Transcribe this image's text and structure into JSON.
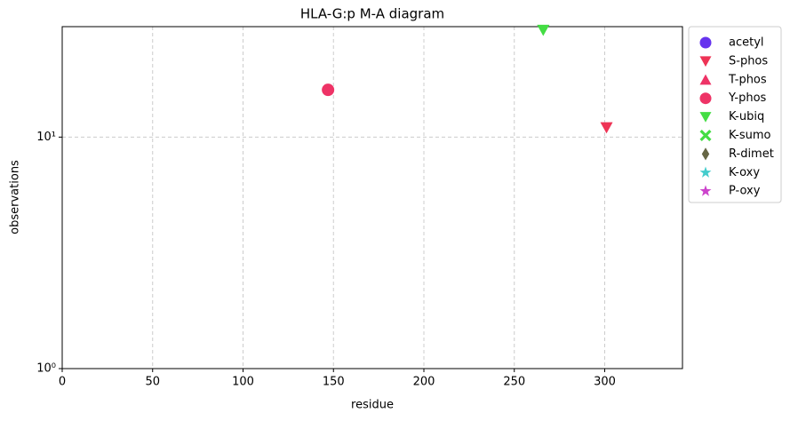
{
  "chart_data": {
    "type": "scatter",
    "title": "HLA-G:p M-A diagram",
    "x_label": "residue",
    "y_label": "observations",
    "xlim": [
      0,
      343
    ],
    "xticks": [
      0,
      50,
      100,
      150,
      200,
      250,
      300
    ],
    "ylim": [
      1,
      30
    ],
    "yscale": "log",
    "yticks": [
      {
        "value": 1,
        "label": "10⁰"
      },
      {
        "value": 10,
        "label": "10¹"
      }
    ],
    "grid": true,
    "legend": "outside right",
    "series": [
      {
        "name": "acetyl",
        "color": "#6633ee",
        "marker": "circle",
        "x": [],
        "values": []
      },
      {
        "name": "S-phos",
        "color": "#ee3355",
        "marker": "triangle-down",
        "x": [
          301
        ],
        "values": [
          11
        ]
      },
      {
        "name": "T-phos",
        "color": "#ee3366",
        "marker": "triangle-up",
        "x": [],
        "values": []
      },
      {
        "name": "Y-phos",
        "color": "#ee3366",
        "marker": "circle",
        "x": [
          147
        ],
        "values": [
          16
        ]
      },
      {
        "name": "K-ubiq",
        "color": "#44dd44",
        "marker": "triangle-down",
        "x": [
          266
        ],
        "values": [
          29
        ]
      },
      {
        "name": "K-sumo",
        "color": "#44dd44",
        "marker": "x",
        "x": [],
        "values": []
      },
      {
        "name": "R-dimet",
        "color": "#666644",
        "marker": "diamond",
        "x": [],
        "values": []
      },
      {
        "name": "K-oxy",
        "color": "#44cccc",
        "marker": "star",
        "x": [],
        "values": []
      },
      {
        "name": "P-oxy",
        "color": "#cc44cc",
        "marker": "star",
        "x": [],
        "values": []
      }
    ]
  }
}
